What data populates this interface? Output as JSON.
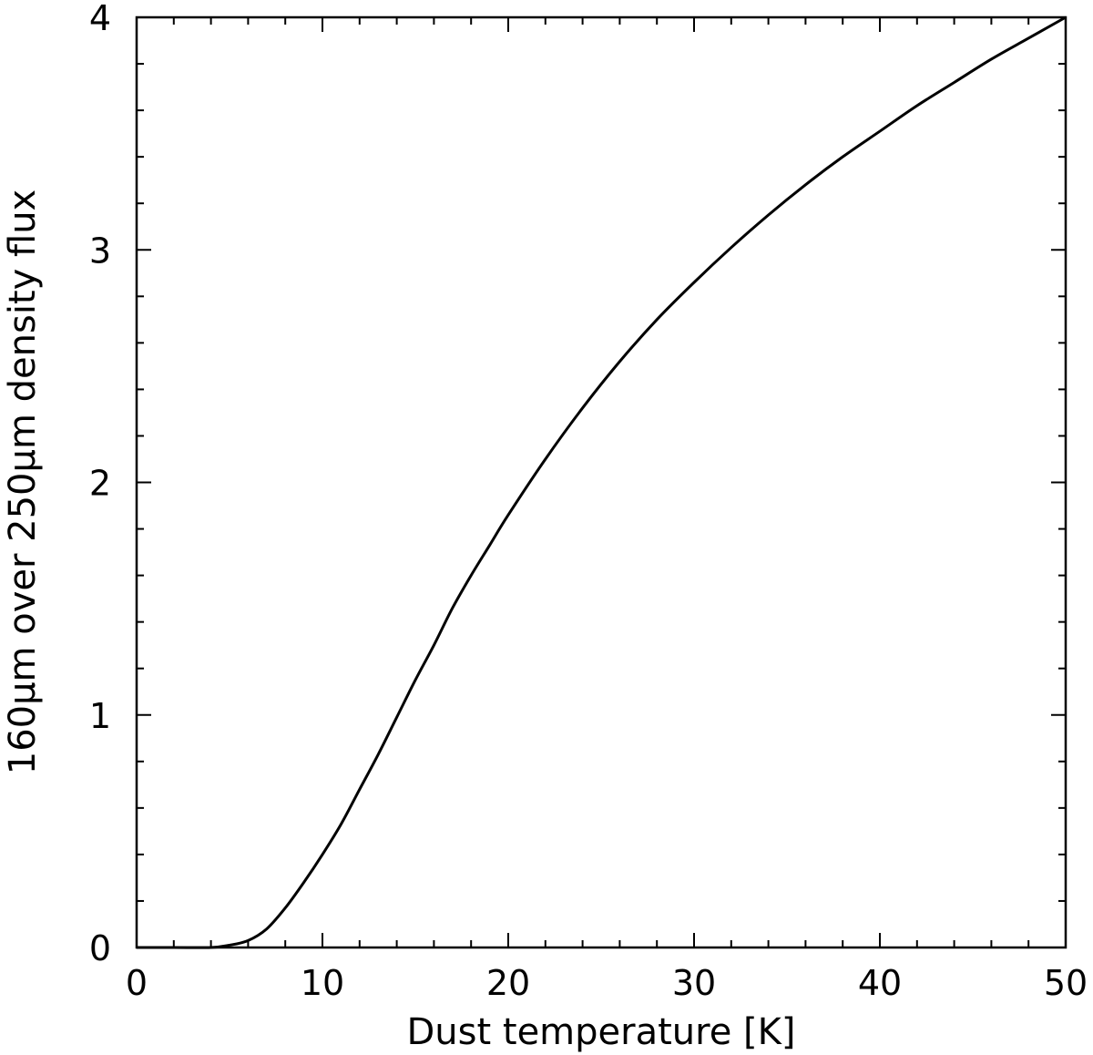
{
  "chart_data": {
    "type": "line",
    "title": "",
    "xlabel": "Dust temperature [K]",
    "ylabel": "160μm over 250μm density flux",
    "xlim": [
      0,
      50
    ],
    "ylim": [
      0,
      4
    ],
    "xticks": [
      "0",
      "10",
      "20",
      "30",
      "40",
      "50"
    ],
    "yticks": [
      "0",
      "1",
      "2",
      "3",
      "4"
    ],
    "grid": false,
    "line_color": "#000000",
    "series": [
      {
        "x": [
          0,
          2,
          4,
          5,
          6,
          7,
          8,
          9,
          10,
          11,
          12,
          13,
          14,
          15,
          16,
          17,
          18,
          19,
          20,
          22,
          24,
          26,
          28,
          30,
          32,
          34,
          36,
          38,
          40,
          42,
          44,
          46,
          48,
          50
        ],
        "y": [
          0,
          0,
          0,
          0.01,
          0.03,
          0.08,
          0.17,
          0.28,
          0.4,
          0.53,
          0.68,
          0.83,
          0.99,
          1.15,
          1.3,
          1.46,
          1.6,
          1.73,
          1.86,
          2.1,
          2.32,
          2.52,
          2.7,
          2.86,
          3.01,
          3.15,
          3.28,
          3.4,
          3.51,
          3.62,
          3.72,
          3.82,
          3.91,
          4.0
        ]
      }
    ]
  }
}
